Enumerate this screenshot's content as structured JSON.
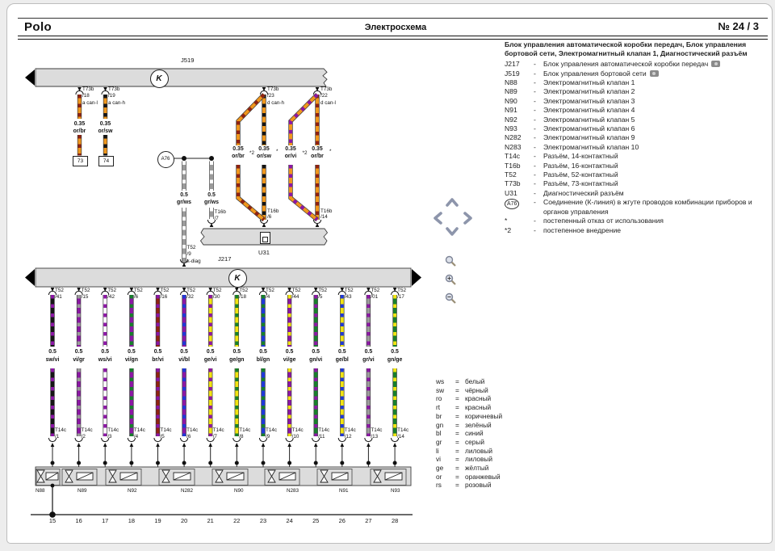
{
  "header": {
    "product": "Polo",
    "title": "Электросхема",
    "page_no": "№  24 / 3"
  },
  "right_panel": {
    "title": "Блок управления автоматической коробки передач, Блок управления бортовой сети, Электромагнитный клапан 1, Диагностический разъём",
    "dash": "-",
    "legend": [
      {
        "key": "J217",
        "desc": "Блок управления автоматической коробки передач",
        "camera": true
      },
      {
        "key": "J519",
        "desc": "Блок управления бортовой сети",
        "camera": true
      },
      {
        "key": "N88",
        "desc": "Электромагнитный клапан 1"
      },
      {
        "key": "N89",
        "desc": "Электромагнитный клапан 2"
      },
      {
        "key": "N90",
        "desc": "Электромагнитный клапан 3"
      },
      {
        "key": "N91",
        "desc": "Электромагнитный клапан 4"
      },
      {
        "key": "N92",
        "desc": "Электромагнитный клапан 5"
      },
      {
        "key": "N93",
        "desc": "Электромагнитный клапан 6"
      },
      {
        "key": "N282",
        "desc": "Электромагнитный клапан 9"
      },
      {
        "key": "N283",
        "desc": "Электромагнитный клапан 10"
      },
      {
        "key": "T14c",
        "desc": "Разъём, 14-контактный"
      },
      {
        "key": "T16b",
        "desc": "Разъём, 16-контактный"
      },
      {
        "key": "T52",
        "desc": "Разъём, 52-контактный"
      },
      {
        "key": "T73b",
        "desc": "Разъём, 73-контактный"
      },
      {
        "key": "U31",
        "desc": "Диагностический разъём"
      },
      {
        "key": "A76",
        "circled": true,
        "desc": "Соединение (К-линия) в жгуте проводов комбинации приборов и органов управления"
      },
      {
        "key": "*",
        "desc": "постепенный отказ от использования"
      },
      {
        "key": "*2",
        "desc": "постепенное внедрение"
      }
    ]
  },
  "color_legend_eq": "=",
  "color_legend": [
    {
      "code": "ws",
      "name": "белый"
    },
    {
      "code": "sw",
      "name": "чёрный"
    },
    {
      "code": "ro",
      "name": "красный"
    },
    {
      "code": "rt",
      "name": "красный"
    },
    {
      "code": "br",
      "name": "коричневый"
    },
    {
      "code": "gn",
      "name": "зелёный"
    },
    {
      "code": "bl",
      "name": "синий"
    },
    {
      "code": "gr",
      "name": "серый"
    },
    {
      "code": "li",
      "name": "лиловый"
    },
    {
      "code": "vi",
      "name": "лиловый"
    },
    {
      "code": "ge",
      "name": "жёлтый"
    },
    {
      "code": "or",
      "name": "оранжевый"
    },
    {
      "code": "rs",
      "name": "розовый"
    }
  ],
  "wire_palette": {
    "or": "#f0971d",
    "br": "#8f2312",
    "sw": "#151515",
    "vi": "#8c17a5",
    "gr": "#9b9b9b",
    "ws": "#ffffff",
    "gn": "#17802b",
    "bl": "#2038d8",
    "ge": "#f2e412"
  },
  "diagram": {
    "top_bus": {
      "label": "J519",
      "symbol": "K"
    },
    "bottom_bus": {
      "label": "J217",
      "symbol": "K"
    },
    "u31_bus": {
      "label": "U31"
    },
    "a76": {
      "label": "A76"
    },
    "top_wires": [
      {
        "conn": "T73b",
        "pin": "/18",
        "signal": "a can-l",
        "gauge": "0.35",
        "color": "or/br",
        "terminal": "73"
      },
      {
        "conn": "T73b",
        "pin": "/19",
        "signal": "a can-h",
        "gauge": "0.35",
        "color": "or/sw",
        "terminal": "74"
      }
    ],
    "kline_wires": [
      {
        "gauge": "0.5",
        "color": "gr/ws",
        "conn": "T52",
        "pin": "/9",
        "signal": "k-diag"
      },
      {
        "gauge": "0.5",
        "color": "gr/ws",
        "conn": "T16b",
        "pin": "/7"
      }
    ],
    "can_pairs": [
      {
        "top_conn": "T73b",
        "top_pin": "/23",
        "signal": "d can-h",
        "bottom_conn": "T16b",
        "bottom_pin": "/6",
        "branch": {
          "gauge": "0.35",
          "color": "or/br",
          "mark": "*2"
        },
        "main": {
          "gauge": "0.35",
          "color": "or/sw",
          "mark": "*"
        }
      },
      {
        "top_conn": "T73b",
        "top_pin": "/22",
        "signal": "d can-l",
        "bottom_conn": "T16b",
        "bottom_pin": "/14",
        "branch": {
          "gauge": "0.35",
          "color": "or/vi",
          "mark": "*2"
        },
        "main": {
          "gauge": "0.35",
          "color": "or/br",
          "mark": "*"
        }
      }
    ],
    "t52_wires": [
      {
        "conn": "T52",
        "pin": "/41",
        "gauge": "0.5",
        "color": "sw/vi",
        "bottom_conn": "T14c",
        "bottom_pin": "/1",
        "track": "15"
      },
      {
        "conn": "T52",
        "pin": "/15",
        "gauge": "0.5",
        "color": "vi/gr",
        "bottom_conn": "T14c",
        "bottom_pin": "/2",
        "track": "16"
      },
      {
        "conn": "T52",
        "pin": "/42",
        "gauge": "0.5",
        "color": "ws/vi",
        "bottom_conn": "T14c",
        "bottom_pin": "/3",
        "track": "17"
      },
      {
        "conn": "T52",
        "pin": "/6",
        "gauge": "0.5",
        "color": "vi/gn",
        "bottom_conn": "T14c",
        "bottom_pin": "/4",
        "track": "18"
      },
      {
        "conn": "T52",
        "pin": "/16",
        "gauge": "0.5",
        "color": "br/vi",
        "bottom_conn": "T14c",
        "bottom_pin": "/5",
        "track": "19"
      },
      {
        "conn": "T52",
        "pin": "/32",
        "gauge": "0.5",
        "color": "vi/bl",
        "bottom_conn": "T14c",
        "bottom_pin": "/6",
        "track": "20"
      },
      {
        "conn": "T52",
        "pin": "/30",
        "gauge": "0.5",
        "color": "ge/vi",
        "bottom_conn": "T14c",
        "bottom_pin": "/7",
        "track": "21"
      },
      {
        "conn": "T52",
        "pin": "/18",
        "gauge": "0.5",
        "color": "ge/gn",
        "bottom_conn": "T14c",
        "bottom_pin": "/8",
        "track": "22"
      },
      {
        "conn": "T52",
        "pin": "/4",
        "gauge": "0.5",
        "color": "bl/gn",
        "bottom_conn": "T14c",
        "bottom_pin": "/9",
        "track": "23"
      },
      {
        "conn": "T52",
        "pin": "/44",
        "gauge": "0.5",
        "color": "vi/ge",
        "bottom_conn": "T14c",
        "bottom_pin": "/10",
        "track": "24"
      },
      {
        "conn": "T52",
        "pin": "/5",
        "gauge": "0.5",
        "color": "gn/vi",
        "bottom_conn": "T14c",
        "bottom_pin": "/11",
        "track": "25"
      },
      {
        "conn": "T52",
        "pin": "/43",
        "gauge": "0.5",
        "color": "ge/bl",
        "bottom_conn": "T14c",
        "bottom_pin": "/12",
        "track": "26"
      },
      {
        "conn": "T52",
        "pin": "/01",
        "gauge": "0.5",
        "color": "gr/vi",
        "bottom_conn": "T14c",
        "bottom_pin": "/13",
        "track": "27"
      },
      {
        "conn": "T52",
        "pin": "/17",
        "gauge": "0.5",
        "color": "gn/ge",
        "bottom_conn": "T14c",
        "bottom_pin": "/14",
        "track": "28"
      }
    ],
    "valves": [
      {
        "label": "N88"
      },
      {
        "label": "N89"
      },
      {
        "label": "N92"
      },
      {
        "label": "N282"
      },
      {
        "label": "N90"
      },
      {
        "label": "N283"
      },
      {
        "label": "N91"
      },
      {
        "label": "N93"
      }
    ]
  },
  "icons": {
    "pan": "chevrons",
    "zoom": "magnifier",
    "zoom_in": "magnifier-plus",
    "zoom_out": "magnifier-minus",
    "camera": "camera",
    "bus_symbol": "K-in-circle"
  }
}
